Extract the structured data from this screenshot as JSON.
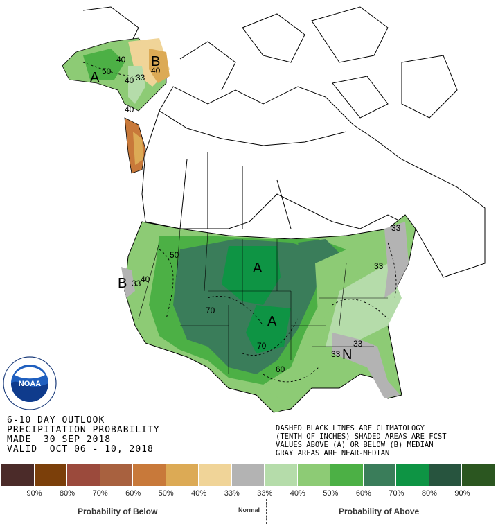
{
  "title": {
    "line1": "6-10 DAY OUTLOOK",
    "line2": "PRECIPITATION PROBABILITY",
    "line3": "MADE  30 SEP 2018",
    "line4": "VALID  OCT 06 - 10, 2018"
  },
  "note": {
    "line1": "DASHED BLACK LINES ARE CLIMATOLOGY",
    "line2": "(TENTH OF INCHES) SHADED AREAS ARE FCST",
    "line3": "VALUES ABOVE (A) OR BELOW (B) MEDIAN",
    "line4": "GRAY AREAS ARE NEAR-MEDIAN"
  },
  "logo": {
    "text": "NOAA",
    "ring_text": "NATIONAL OCEANIC AND ATMOSPHERIC ADMINISTRATION · U.S. DEPARTMENT OF COMMERCE"
  },
  "legend": {
    "colors": [
      "#4b2b29",
      "#7b3f0a",
      "#9b4a3c",
      "#a8613f",
      "#c8793a",
      "#dcaa55",
      "#f0d498",
      "#b3b3b3",
      "#b5dcaa",
      "#8dcb75",
      "#4cb045",
      "#3a7d5a",
      "#0e9444",
      "#27543e",
      "#2b5620"
    ],
    "ticks": [
      "90%",
      "80%",
      "70%",
      "60%",
      "50%",
      "40%",
      "33%",
      "33%",
      "40%",
      "50%",
      "60%",
      "70%",
      "80%",
      "90%"
    ],
    "below_label": "Probability of Below",
    "normal_label": "Normal",
    "above_label": "Probability of Above"
  },
  "map_labels": {
    "ak_A": "A",
    "ak_B": "B",
    "ak_50": "50",
    "ak_40a": "40",
    "ak_40b": "40",
    "ak_40c": "40",
    "ak_33": "33",
    "ak_40d": "40",
    "plains_A": "A",
    "south_A": "A",
    "west_B": "B",
    "west_40": "40",
    "west_33": "33",
    "nw_50": "50",
    "c_70": "70",
    "s_70": "70",
    "tx_60": "60",
    "se_33a": "33",
    "se_33b": "33",
    "se_N": "N",
    "ne_33a": "33",
    "ne_33b": "33"
  }
}
